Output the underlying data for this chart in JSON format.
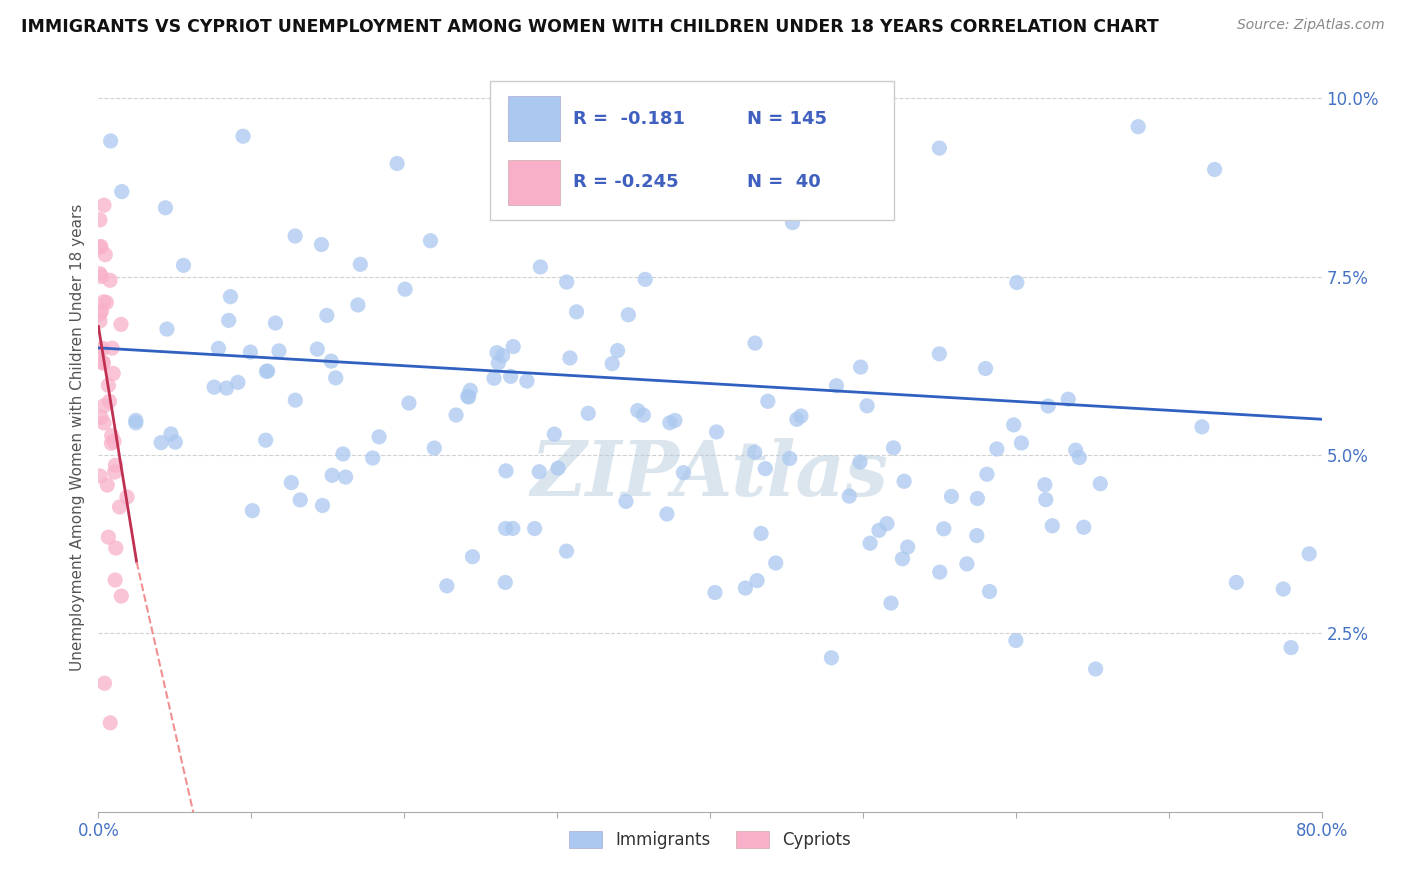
{
  "title": "IMMIGRANTS VS CYPRIOT UNEMPLOYMENT AMONG WOMEN WITH CHILDREN UNDER 18 YEARS CORRELATION CHART",
  "source": "Source: ZipAtlas.com",
  "ylabel": "Unemployment Among Women with Children Under 18 years",
  "xlim": [
    0.0,
    0.8
  ],
  "ylim": [
    0.0,
    0.105
  ],
  "xticks": [
    0.0,
    0.1,
    0.2,
    0.3,
    0.4,
    0.5,
    0.6,
    0.7,
    0.8
  ],
  "xticklabels": [
    "0.0%",
    "",
    "",
    "",
    "",
    "",
    "",
    "",
    "80.0%"
  ],
  "ytick_positions": [
    0.025,
    0.05,
    0.075,
    0.1
  ],
  "yticklabels": [
    "2.5%",
    "5.0%",
    "7.5%",
    "10.0%"
  ],
  "immigrant_color": "#aac8f0",
  "cypriot_color": "#f8b0c8",
  "immigrant_line_color": "#3060c0",
  "cypriot_line_solid_color": "#c03050",
  "cypriot_line_dash_color": "#f09090",
  "background_color": "#ffffff",
  "watermark": "ZIPAtlas",
  "legend_r1": "R =  -0.181",
  "legend_n1": "N = 145",
  "legend_r2": "R = -0.245",
  "legend_n2": "N =  40",
  "seed": 123
}
